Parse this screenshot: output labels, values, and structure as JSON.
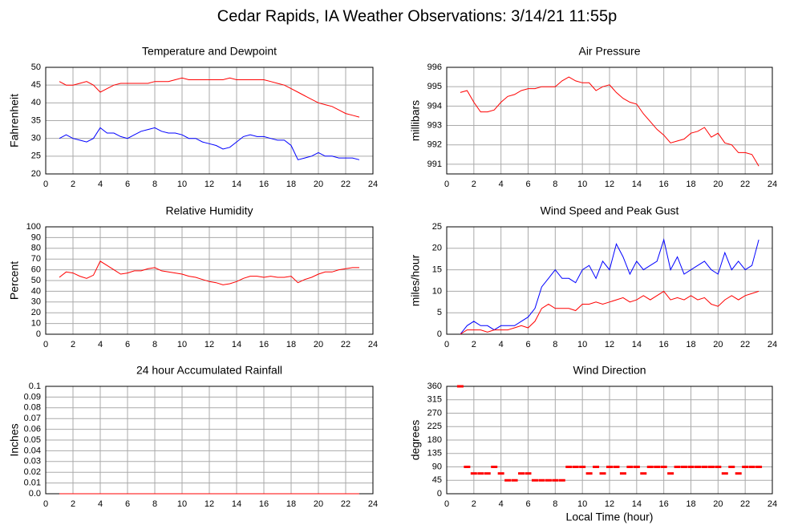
{
  "title": "Cedar Rapids, IA Weather Observations: 3/14/21 11:55p",
  "chart_data": [
    {
      "type": "line",
      "title": "Temperature and Dewpoint",
      "ylabel": "Fahrenheit",
      "xlim": [
        0,
        24
      ],
      "xticks": [
        0,
        2,
        4,
        6,
        8,
        10,
        12,
        14,
        16,
        18,
        20,
        22,
        24
      ],
      "ylim": [
        20,
        50
      ],
      "yticks": [
        20,
        25,
        30,
        35,
        40,
        45,
        50
      ],
      "grid": true,
      "x": [
        1,
        1.5,
        2,
        2.5,
        3,
        3.5,
        4,
        4.5,
        5,
        5.5,
        6,
        6.5,
        7,
        7.5,
        8,
        8.5,
        9,
        9.5,
        10,
        10.5,
        11,
        11.5,
        12,
        12.5,
        13,
        13.5,
        14,
        14.5,
        15,
        15.5,
        16,
        16.5,
        17,
        17.5,
        18,
        18.5,
        19,
        19.5,
        20,
        20.5,
        21,
        21.5,
        22,
        22.5,
        23
      ],
      "series": [
        {
          "color": "#ff0000",
          "values": [
            46,
            45,
            45,
            45.5,
            46,
            45,
            43,
            44,
            45,
            45.5,
            45.5,
            45.5,
            45.5,
            45.5,
            46,
            46,
            46,
            46.5,
            47,
            46.5,
            46.5,
            46.5,
            46.5,
            46.5,
            46.5,
            47,
            46.5,
            46.5,
            46.5,
            46.5,
            46.5,
            46,
            45.5,
            45,
            44,
            43,
            42,
            41,
            40,
            39.5,
            39,
            38,
            37,
            36.5,
            36
          ]
        },
        {
          "color": "#0000ff",
          "values": [
            30,
            31,
            30,
            29.5,
            29,
            30,
            33,
            31.5,
            31.5,
            30.5,
            30,
            31,
            32,
            32.5,
            33,
            32,
            31.5,
            31.5,
            31,
            30,
            30,
            29,
            28.5,
            28,
            27,
            27.5,
            29,
            30.5,
            31,
            30.5,
            30.5,
            30,
            29.5,
            29.5,
            28,
            24,
            24.5,
            25,
            26,
            25,
            25,
            24.5,
            24.5,
            24.5,
            24
          ]
        }
      ]
    },
    {
      "type": "line",
      "title": "Air Pressure",
      "ylabel": "millibars",
      "xlim": [
        0,
        24
      ],
      "xticks": [
        0,
        2,
        4,
        6,
        8,
        10,
        12,
        14,
        16,
        18,
        20,
        22,
        24
      ],
      "ylim": [
        990.5,
        996
      ],
      "yticks": [
        991,
        992,
        993,
        994,
        995,
        996
      ],
      "grid": true,
      "x": [
        1,
        1.5,
        2,
        2.5,
        3,
        3.5,
        4,
        4.5,
        5,
        5.5,
        6,
        6.5,
        7,
        7.5,
        8,
        8.5,
        9,
        9.5,
        10,
        10.5,
        11,
        11.5,
        12,
        12.5,
        13,
        13.5,
        14,
        14.5,
        15,
        15.5,
        16,
        16.5,
        17,
        17.5,
        18,
        18.5,
        19,
        19.5,
        20,
        20.5,
        21,
        21.5,
        22,
        22.5,
        23
      ],
      "series": [
        {
          "color": "#ff0000",
          "values": [
            994.7,
            994.8,
            994.2,
            993.7,
            993.7,
            993.8,
            994.2,
            994.5,
            994.6,
            994.8,
            994.9,
            994.9,
            995,
            995,
            995,
            995.3,
            995.5,
            995.3,
            995.2,
            995.2,
            994.8,
            995,
            995.1,
            994.7,
            994.4,
            994.2,
            994.1,
            993.6,
            993.2,
            992.8,
            992.5,
            992.1,
            992.2,
            992.3,
            992.6,
            992.7,
            992.9,
            992.4,
            992.6,
            992.1,
            992,
            991.6,
            991.6,
            991.5,
            990.9
          ]
        }
      ]
    },
    {
      "type": "line",
      "title": "Relative Humidity",
      "ylabel": "Percent",
      "xlim": [
        0,
        24
      ],
      "xticks": [
        0,
        2,
        4,
        6,
        8,
        10,
        12,
        14,
        16,
        18,
        20,
        22,
        24
      ],
      "ylim": [
        0,
        100
      ],
      "yticks": [
        0,
        10,
        20,
        30,
        40,
        50,
        60,
        70,
        80,
        90,
        100
      ],
      "grid": true,
      "x": [
        1,
        1.5,
        2,
        2.5,
        3,
        3.5,
        4,
        4.5,
        5,
        5.5,
        6,
        6.5,
        7,
        7.5,
        8,
        8.5,
        9,
        9.5,
        10,
        10.5,
        11,
        11.5,
        12,
        12.5,
        13,
        13.5,
        14,
        14.5,
        15,
        15.5,
        16,
        16.5,
        17,
        17.5,
        18,
        18.5,
        19,
        19.5,
        20,
        20.5,
        21,
        21.5,
        22,
        22.5,
        23
      ],
      "series": [
        {
          "color": "#ff0000",
          "values": [
            53,
            58,
            57,
            54,
            52,
            55,
            68,
            64,
            60,
            56,
            57,
            59,
            59,
            61,
            62,
            59,
            58,
            57,
            56,
            54,
            53,
            51,
            49,
            48,
            46,
            47,
            49,
            52,
            54,
            54,
            53,
            54,
            53,
            53,
            54,
            48,
            51,
            53,
            56,
            58,
            58,
            60,
            61,
            62,
            62
          ]
        }
      ]
    },
    {
      "type": "line",
      "title": "Wind Speed and Peak Gust",
      "ylabel": "miles/hour",
      "xlim": [
        0,
        24
      ],
      "xticks": [
        0,
        2,
        4,
        6,
        8,
        10,
        12,
        14,
        16,
        18,
        20,
        22,
        24
      ],
      "ylim": [
        0,
        25
      ],
      "yticks": [
        0,
        5,
        10,
        15,
        20,
        25
      ],
      "grid": true,
      "x": [
        1,
        1.5,
        2,
        2.5,
        3,
        3.5,
        4,
        4.5,
        5,
        5.5,
        6,
        6.5,
        7,
        7.5,
        8,
        8.5,
        9,
        9.5,
        10,
        10.5,
        11,
        11.5,
        12,
        12.5,
        13,
        13.5,
        14,
        14.5,
        15,
        15.5,
        16,
        16.5,
        17,
        17.5,
        18,
        18.5,
        19,
        19.5,
        20,
        20.5,
        21,
        21.5,
        22,
        22.5,
        23
      ],
      "series": [
        {
          "color": "#0000ff",
          "values": [
            0,
            2,
            3,
            2,
            2,
            1,
            2,
            2,
            2,
            3,
            4,
            6,
            11,
            13,
            15,
            13,
            13,
            12,
            15,
            16,
            13,
            17,
            15,
            21,
            18,
            14,
            17,
            15,
            16,
            17,
            22,
            15,
            18,
            14,
            15,
            16,
            17,
            15,
            14,
            19,
            15,
            17,
            15,
            16,
            22
          ]
        },
        {
          "color": "#ff0000",
          "values": [
            0,
            1,
            1,
            1,
            0.5,
            1,
            1,
            1,
            1.5,
            2,
            1.5,
            3,
            6,
            7,
            6,
            6,
            6,
            5.5,
            7,
            7,
            7.5,
            7,
            7.5,
            8,
            8.5,
            7.5,
            8,
            9,
            8,
            9,
            10,
            8,
            8.5,
            8,
            9,
            8,
            8.5,
            7,
            6.5,
            8,
            9,
            8,
            9,
            9.5,
            10
          ]
        }
      ]
    },
    {
      "type": "line",
      "title": "24 hour Accumulated Rainfall",
      "ylabel": "Inches",
      "xlim": [
        0,
        24
      ],
      "xticks": [
        0,
        2,
        4,
        6,
        8,
        10,
        12,
        14,
        16,
        18,
        20,
        22,
        24
      ],
      "ylim": [
        0,
        0.1
      ],
      "yticks": [
        {
          "value": 0,
          "label": "0.0"
        },
        0.01,
        0.02,
        0.03,
        0.04,
        0.05,
        0.06,
        0.07,
        0.08,
        0.09,
        0.1
      ],
      "grid": true,
      "x": [
        1,
        23
      ],
      "series": [
        {
          "color": "#ff0000",
          "values": [
            0,
            0
          ]
        }
      ]
    },
    {
      "type": "scatter",
      "title": "Wind Direction",
      "ylabel": "degrees",
      "xlabel": "Local Time (hour)",
      "xlim": [
        0,
        24
      ],
      "xticks": [
        0,
        2,
        4,
        6,
        8,
        10,
        12,
        14,
        16,
        18,
        20,
        22,
        24
      ],
      "ylim": [
        0,
        360
      ],
      "yticks": [
        0,
        45,
        90,
        135,
        180,
        225,
        270,
        315,
        360
      ],
      "grid": true,
      "x": [
        1,
        1.5,
        2,
        2.5,
        3,
        3.5,
        4,
        4.5,
        5,
        5.5,
        6,
        6.5,
        7,
        7.5,
        8,
        8.5,
        9,
        9.5,
        10,
        10.5,
        11,
        11.5,
        12,
        12.5,
        13,
        13.5,
        14,
        14.5,
        15,
        15.5,
        16,
        16.5,
        17,
        17.5,
        18,
        18.5,
        19,
        19.5,
        20,
        20.5,
        21,
        21.5,
        22,
        22.5,
        23
      ],
      "series": [
        {
          "color": "#ff0000",
          "values": [
            360,
            90,
            68,
            68,
            68,
            90,
            68,
            45,
            45,
            68,
            68,
            45,
            45,
            45,
            45,
            45,
            90,
            90,
            90,
            68,
            90,
            68,
            90,
            90,
            68,
            90,
            90,
            68,
            90,
            90,
            90,
            68,
            90,
            90,
            90,
            90,
            90,
            90,
            90,
            68,
            90,
            68,
            90,
            90,
            90
          ]
        }
      ]
    }
  ]
}
